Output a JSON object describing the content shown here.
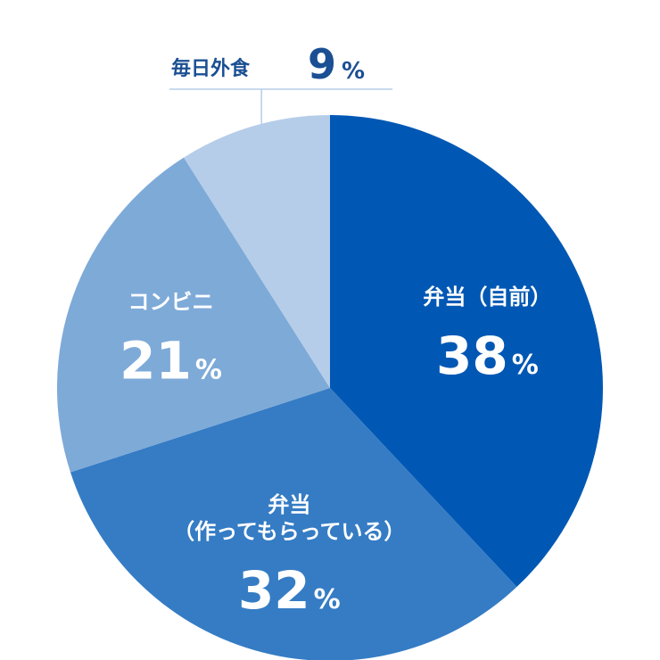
{
  "chart_data": {
    "type": "pie",
    "start_angle_deg": 0,
    "direction": "clockwise",
    "slices": [
      {
        "label": "弁当（自前）",
        "label_lines": [
          "弁当（自前）"
        ],
        "value": 38,
        "percent_label": "38",
        "unit": "%",
        "color": "#0058b4",
        "text_color": "#ffffff"
      },
      {
        "label": "弁当（作ってもらっている）",
        "label_lines": [
          "弁当",
          "（作ってもらっている）"
        ],
        "value": 32,
        "percent_label": "32",
        "unit": "%",
        "color": "#357cc4",
        "text_color": "#ffffff"
      },
      {
        "label": "コンビニ",
        "label_lines": [
          "コンビニ"
        ],
        "value": 21,
        "percent_label": "21",
        "unit": "%",
        "color": "#7eaad8",
        "text_color": "#ffffff"
      },
      {
        "label": "毎日外食",
        "label_lines": [
          "毎日外食"
        ],
        "value": 9,
        "percent_label": "9",
        "unit": "%",
        "color": "#b5cde9",
        "text_color": "#1a4f93",
        "label_outside": true
      }
    ],
    "leader_line_color": "#b5cde9"
  }
}
